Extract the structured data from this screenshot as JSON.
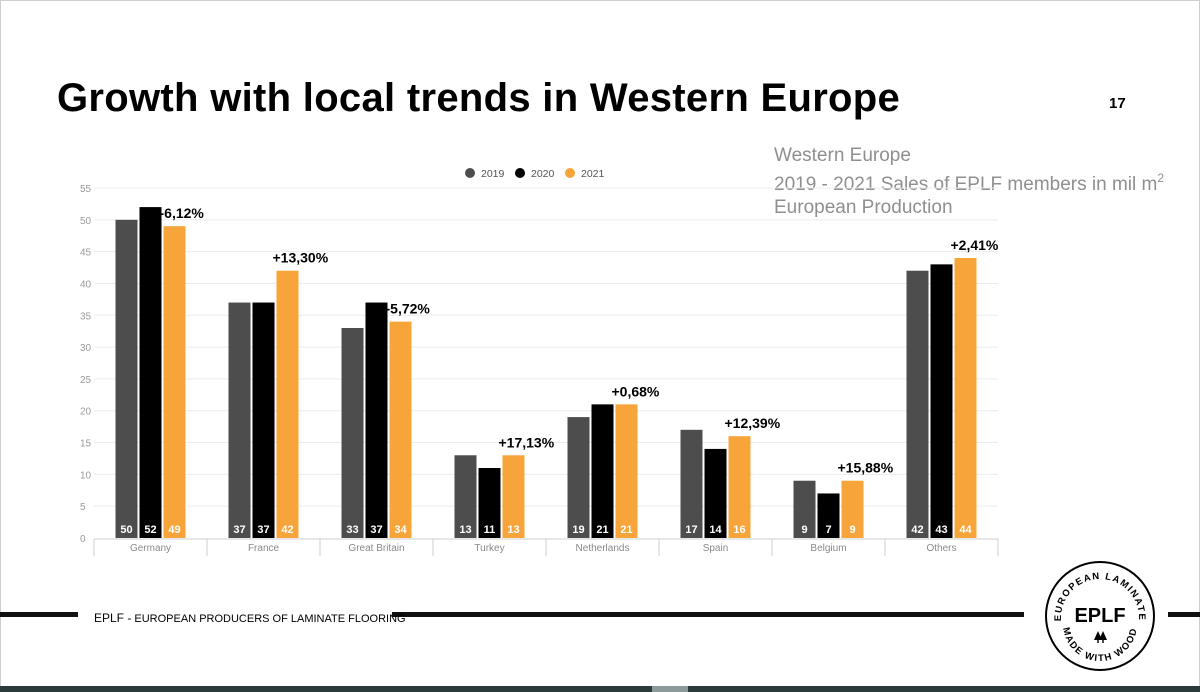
{
  "title": "Growth with local trends in Western Europe",
  "page_number": "17",
  "subtitle": {
    "line1": "Western Europe",
    "line2": "2019 - 2021 Sales of EPLF members in mil m",
    "line2_sup": "2",
    "line3": "European Production"
  },
  "colors": {
    "s2019": "#4d4d4d",
    "s2020": "#000000",
    "s2021": "#f7a43a"
  },
  "chart_data": {
    "type": "bar",
    "categories": [
      "Germany",
      "France",
      "Great Britain",
      "Turkey",
      "Netherlands",
      "Spain",
      "Belgium",
      "Others"
    ],
    "series": [
      {
        "name": "2019",
        "values": [
          50,
          37,
          33,
          13,
          19,
          17,
          9,
          42
        ]
      },
      {
        "name": "2020",
        "values": [
          52,
          37,
          37,
          11,
          21,
          14,
          7,
          43
        ]
      },
      {
        "name": "2021",
        "values": [
          49,
          42,
          34,
          13,
          21,
          16,
          9,
          44
        ]
      }
    ],
    "changes": [
      "-6,12%",
      "+13,30%",
      "-5,72%",
      "+17,13%",
      "+0,68%",
      "+12,39%",
      "+15,88%",
      "+2,41%"
    ],
    "ylim": [
      0,
      55
    ],
    "yticks": [
      "0",
      "5",
      "10",
      "15",
      "20",
      "25",
      "30",
      "35",
      "40",
      "45",
      "50",
      "55"
    ],
    "legend_position": "top-center",
    "grid": true
  },
  "footer": {
    "brand": "EPLF -",
    "name": " EUROPEAN PRODUCERS OF LAMINATE FLOORING"
  },
  "logo": {
    "center_text": "EPLF",
    "top_arc": "EUROPEAN LAMINATE",
    "bottom_arc": "MADE WITH WOOD"
  }
}
